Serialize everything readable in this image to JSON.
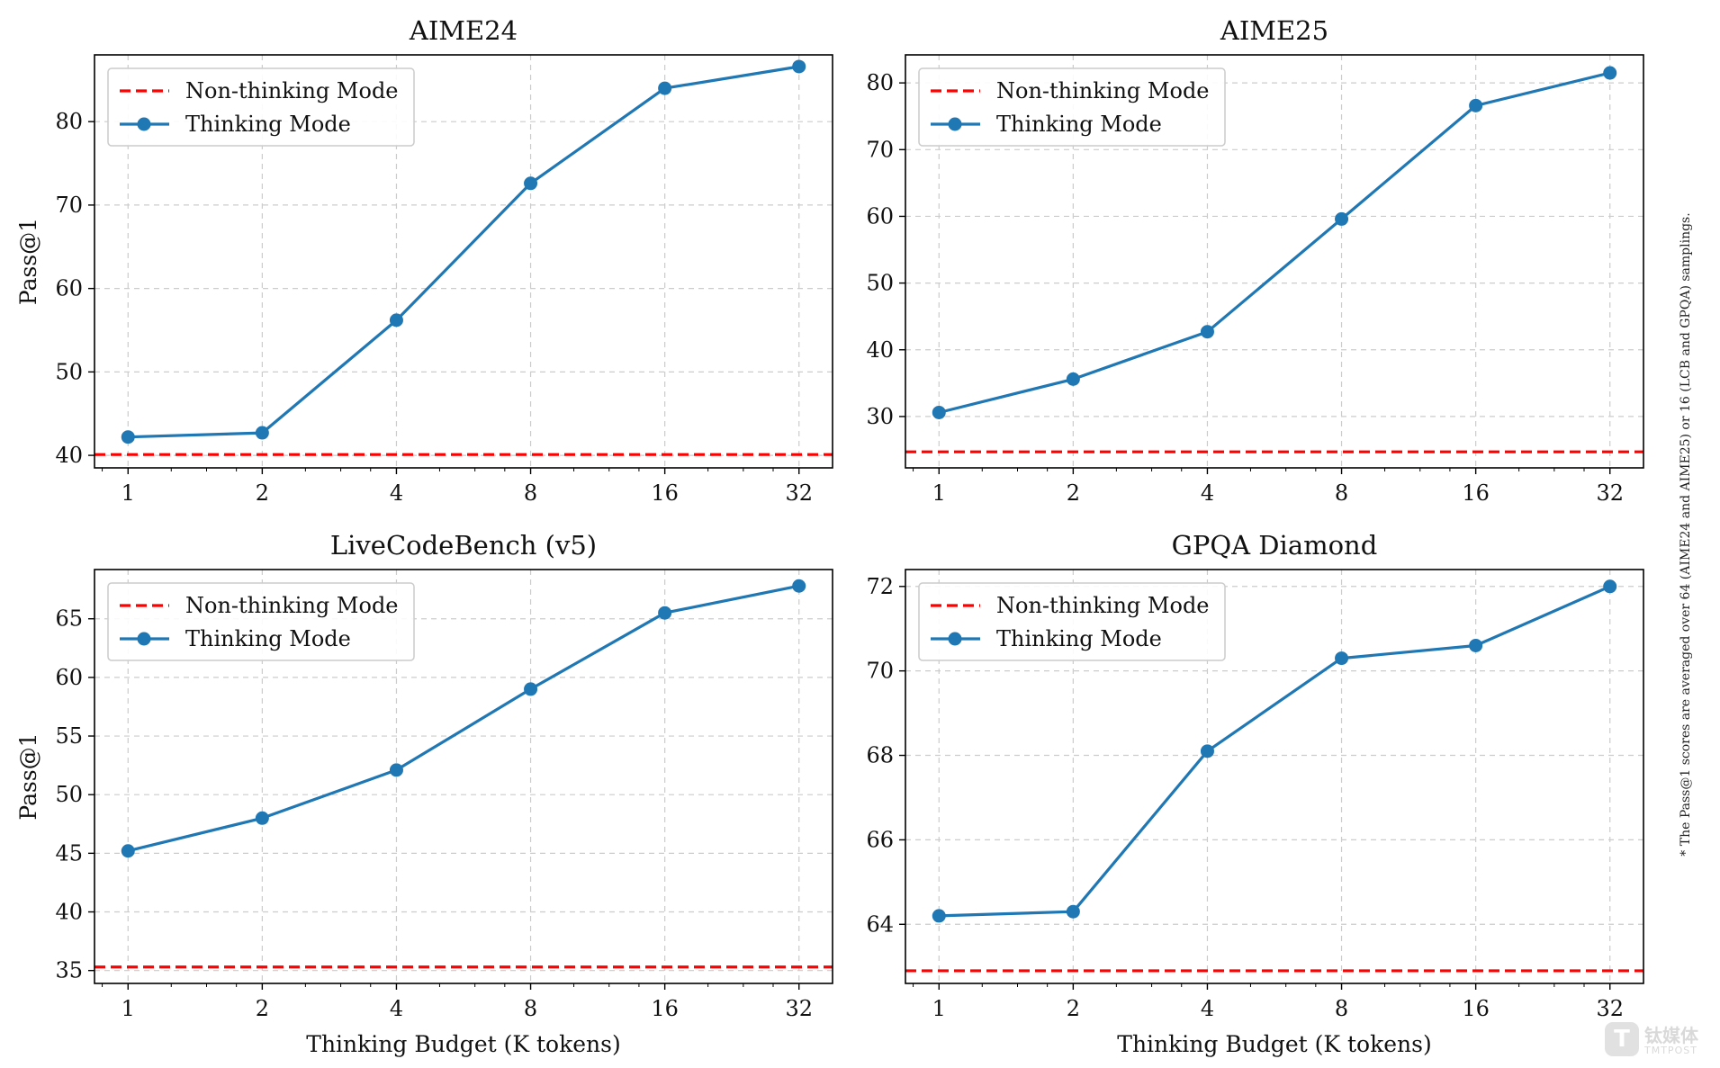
{
  "figure": {
    "footnote": "* The Pass@1 scores are averaged over 64 (AIME24 and AIME25) or 16 (LCB and GPQA) samplings.",
    "watermark": {
      "logo_text": "T",
      "brand_text": "钛媒体",
      "sub_text": "TMTPOST"
    }
  },
  "colors": {
    "thinking": "#1f77b4",
    "non_thinking": "#ff0000",
    "grid": "#cccccc",
    "axes": "#000000"
  },
  "chart_data": [
    {
      "type": "line",
      "title": "AIME24",
      "xlabel": "",
      "ylabel": "Pass@1",
      "x_scale": "log2",
      "categories": [
        "1",
        "2",
        "4",
        "8",
        "16",
        "32"
      ],
      "x": [
        1,
        2,
        4,
        8,
        16,
        32
      ],
      "ylim": [
        38.5,
        88
      ],
      "yticks": [
        40,
        50,
        60,
        70,
        80
      ],
      "grid": true,
      "legend_position": "top-left",
      "series": [
        {
          "name": "Non-thinking Mode",
          "style": "dashed-hline",
          "value": 40.1
        },
        {
          "name": "Thinking Mode",
          "style": "line-marker",
          "values": [
            42.2,
            42.7,
            56.2,
            72.6,
            84.0,
            86.6
          ]
        }
      ]
    },
    {
      "type": "line",
      "title": "AIME25",
      "xlabel": "",
      "ylabel": "",
      "x_scale": "log2",
      "categories": [
        "1",
        "2",
        "4",
        "8",
        "16",
        "32"
      ],
      "x": [
        1,
        2,
        4,
        8,
        16,
        32
      ],
      "ylim": [
        22.3,
        84.2
      ],
      "yticks": [
        30,
        40,
        50,
        60,
        70,
        80
      ],
      "grid": true,
      "legend_position": "top-left",
      "series": [
        {
          "name": "Non-thinking Mode",
          "style": "dashed-hline",
          "value": 24.7
        },
        {
          "name": "Thinking Mode",
          "style": "line-marker",
          "values": [
            30.6,
            35.6,
            42.7,
            59.6,
            76.6,
            81.5
          ]
        }
      ]
    },
    {
      "type": "line",
      "title": "LiveCodeBench (v5)",
      "xlabel": "Thinking Budget (K tokens)",
      "ylabel": "Pass@1",
      "x_scale": "log2",
      "categories": [
        "1",
        "2",
        "4",
        "8",
        "16",
        "32"
      ],
      "x": [
        1,
        2,
        4,
        8,
        16,
        32
      ],
      "ylim": [
        33.9,
        69.2
      ],
      "yticks": [
        35,
        40,
        45,
        50,
        55,
        60,
        65
      ],
      "grid": true,
      "legend_position": "top-left",
      "series": [
        {
          "name": "Non-thinking Mode",
          "style": "dashed-hline",
          "value": 35.3
        },
        {
          "name": "Thinking Mode",
          "style": "line-marker",
          "values": [
            45.2,
            48.0,
            52.1,
            59.0,
            65.5,
            67.8
          ]
        }
      ]
    },
    {
      "type": "line",
      "title": "GPQA Diamond",
      "xlabel": "Thinking Budget (K tokens)",
      "ylabel": "",
      "x_scale": "log2",
      "categories": [
        "1",
        "2",
        "4",
        "8",
        "16",
        "32"
      ],
      "x": [
        1,
        2,
        4,
        8,
        16,
        32
      ],
      "ylim": [
        62.6,
        72.4
      ],
      "yticks": [
        64,
        66,
        68,
        70,
        72
      ],
      "grid": true,
      "legend_position": "top-left",
      "series": [
        {
          "name": "Non-thinking Mode",
          "style": "dashed-hline",
          "value": 62.9
        },
        {
          "name": "Thinking Mode",
          "style": "line-marker",
          "values": [
            64.2,
            64.3,
            68.1,
            70.3,
            70.6,
            72.0
          ]
        }
      ]
    }
  ]
}
